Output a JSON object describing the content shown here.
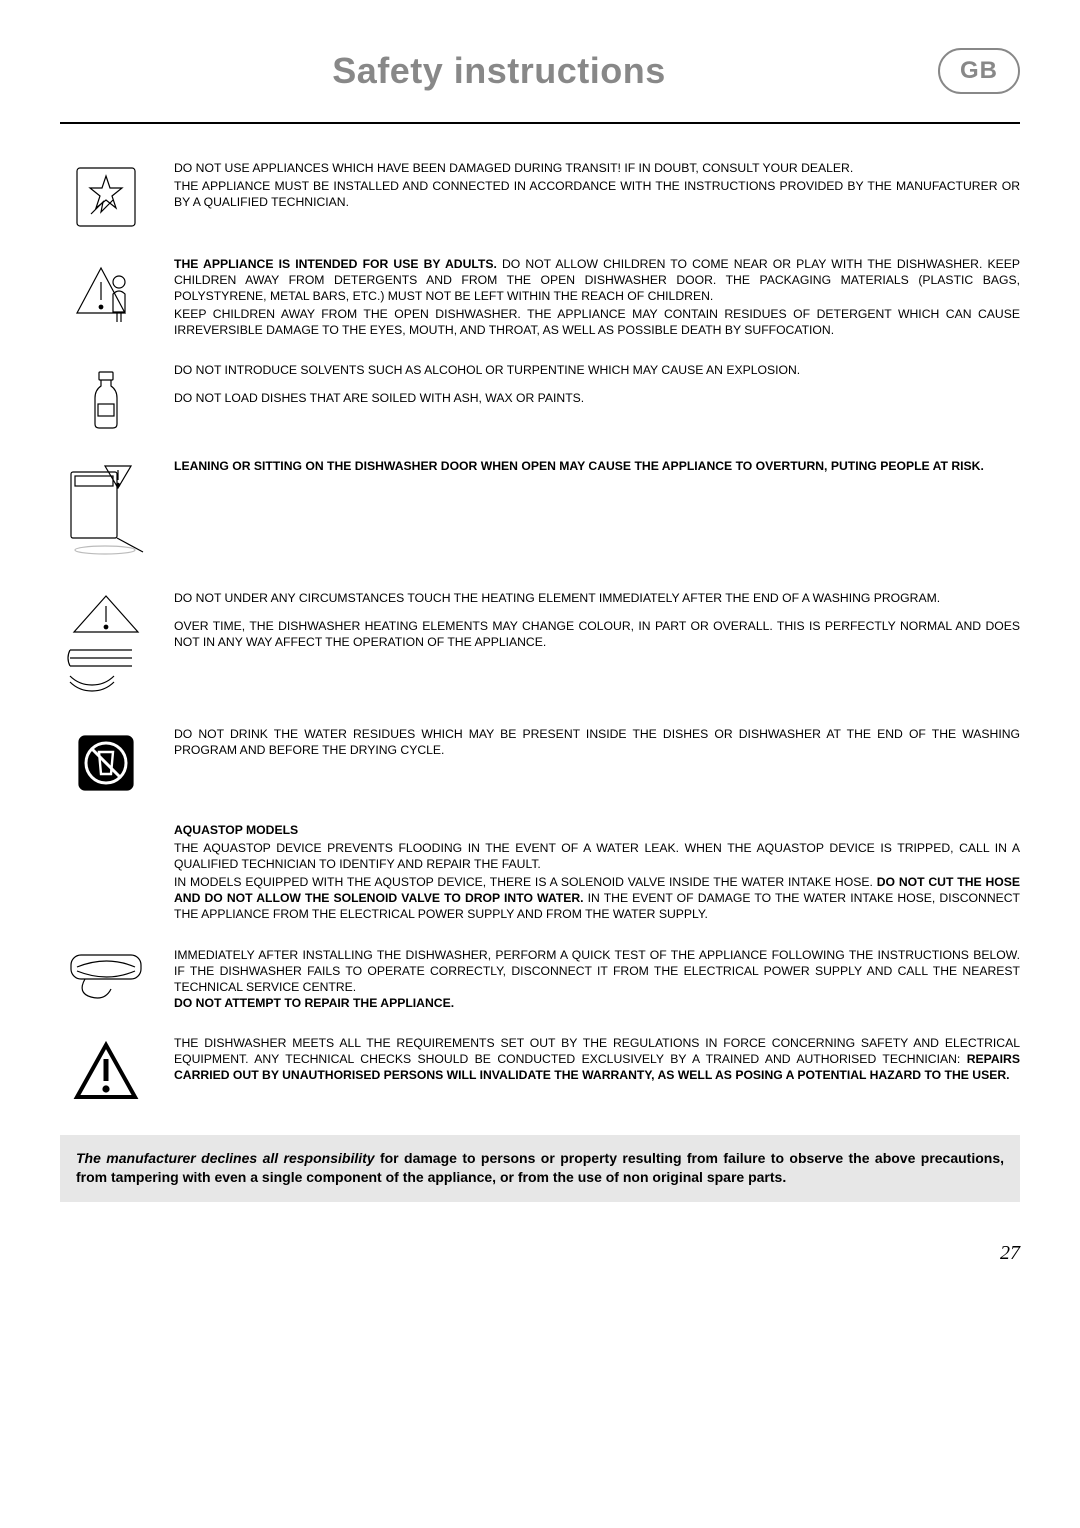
{
  "header": {
    "title": "Safety instructions",
    "badge": "GB"
  },
  "sections": [
    {
      "icon": "breakage-icon",
      "paragraphs": [
        {
          "text": "DO NOT USE APPLIANCES WHICH HAVE BEEN DAMAGED DURING TRANSIT! IF IN DOUBT, CONSULT YOUR DEALER."
        },
        {
          "text": "THE APPLIANCE MUST BE INSTALLED AND CONNECTED IN ACCORDANCE WITH THE INSTRUCTIONS PROVIDED BY THE MANUFACTURER OR BY A QUALIFIED TECHNICIAN."
        }
      ]
    },
    {
      "icon": "child-warning-icon",
      "paragraphs": [
        {
          "html": "<span class=\"bold\">THE APPLIANCE IS INTENDED FOR USE BY ADULTS.</span> DO NOT ALLOW CHILDREN TO COME NEAR OR PLAY WITH THE DISHWASHER. KEEP CHILDREN AWAY FROM DETERGENTS AND FROM THE OPEN DISHWASHER DOOR. THE PACKAGING MATERIALS (PLASTIC BAGS, POLYSTYRENE, METAL BARS, ETC.) MUST NOT BE LEFT WITHIN THE REACH OF CHILDREN."
        },
        {
          "text": "KEEP CHILDREN AWAY FROM THE OPEN DISHWASHER. THE APPLIANCE MAY CONTAIN RESIDUES OF DETERGENT WHICH CAN CAUSE IRREVERSIBLE DAMAGE TO THE EYES, MOUTH, AND THROAT, AS WELL AS POSSIBLE DEATH BY SUFFOCATION."
        }
      ]
    },
    {
      "icon": "bottle-icon",
      "paragraphs": [
        {
          "text": "DO NOT INTRODUCE SOLVENTS SUCH AS ALCOHOL OR TURPENTINE WHICH MAY CAUSE AN EXPLOSION."
        },
        {
          "text": "DO NOT LOAD DISHES THAT ARE SOILED WITH ASH, WAX OR PAINTS.",
          "gap": true
        }
      ]
    },
    {
      "icon": "overturn-icon",
      "paragraphs": [
        {
          "html": "<span class=\"bold\">LEANING OR SITTING ON THE DISHWASHER DOOR WHEN OPEN MAY CAUSE THE APPLIANCE TO OVERTURN, PUTING PEOPLE AT RISK.</span>"
        }
      ]
    },
    {
      "icon": "heating-icon",
      "paragraphs": [
        {
          "text": "DO NOT UNDER ANY CIRCUMSTANCES TOUCH THE HEATING ELEMENT IMMEDIATELY AFTER THE END OF A WASHING PROGRAM."
        },
        {
          "text": "OVER TIME, THE DISHWASHER HEATING ELEMENTS MAY CHANGE COLOUR, IN PART OR OVERALL. THIS IS PERFECTLY NORMAL AND DOES NOT IN ANY WAY AFFECT THE OPERATION OF THE APPLIANCE.",
          "gap": true
        }
      ]
    },
    {
      "icon": "no-drink-icon",
      "paragraphs": [
        {
          "text": "DO NOT DRINK THE WATER RESIDUES WHICH MAY BE PRESENT INSIDE THE DISHES OR DISHWASHER AT THE END OF THE WASHING PROGRAM AND BEFORE THE DRYING CYCLE."
        }
      ]
    },
    {
      "icon": null,
      "subhead": "AQUASTOP MODELS",
      "paragraphs": [
        {
          "text": "THE AQUASTOP DEVICE PREVENTS FLOODING IN THE EVENT OF A WATER LEAK. WHEN THE AQUASTOP DEVICE IS TRIPPED, CALL IN A QUALIFIED TECHNICIAN TO  IDENTIFY AND REPAIR THE FAULT."
        },
        {
          "html": "IN MODELS EQUIPPED WITH THE AQUSTOP DEVICE, THERE IS A SOLENOID VALVE INSIDE THE WATER INTAKE HOSE. <span class=\"bold\">DO NOT CUT THE HOSE AND DO NOT ALLOW THE SOLENOID VALVE TO DROP INTO WATER.</span>  IN THE EVENT OF DAMAGE TO THE WATER INTAKE HOSE, DISCONNECT THE APPLIANCE FROM THE ELECTRICAL POWER SUPPLY AND FROM THE WATER SUPPLY."
        }
      ]
    },
    {
      "icon": "hose-icon",
      "paragraphs": [
        {
          "html": "IMMEDIATELY AFTER INSTALLING THE DISHWASHER, PERFORM A QUICK TEST OF THE APPLIANCE FOLLOWING THE INSTRUCTIONS BELOW. IF THE DISHWASHER FAILS TO OPERATE CORRECTLY, DISCONNECT IT FROM THE ELECTRICAL POWER SUPPLY AND CALL THE NEAREST TECHNICAL SERVICE CENTRE.<br><span class=\"bold\">DO NOT ATTEMPT TO REPAIR THE APPLIANCE.</span>"
        }
      ]
    },
    {
      "icon": "warning-triangle-icon",
      "paragraphs": [
        {
          "html": "THE DISHWASHER MEETS ALL THE REQUIREMENTS SET OUT BY THE REGULATIONS IN FORCE CONCERNING SAFETY AND ELECTRICAL EQUIPMENT. ANY TECHNICAL CHECKS SHOULD BE CONDUCTED EXCLUSIVELY BY A TRAINED AND AUTHORISED TECHNICIAN: <span class=\"bold\">REPAIRS CARRIED OUT BY UNAUTHORISED PERSONS WILL INVALIDATE THE WARRANTY, AS WELL AS POSING A POTENTIAL HAZARD TO THE USER.</span>"
        }
      ]
    }
  ],
  "disclaimer": {
    "lead": "The manufacturer declines all responsibility",
    "cont": " for damage to persons or property resulting from failure to observe the above precautions, from tampering with even a single component of the appliance, or from  the use of non original spare parts."
  },
  "pageNumber": "27"
}
